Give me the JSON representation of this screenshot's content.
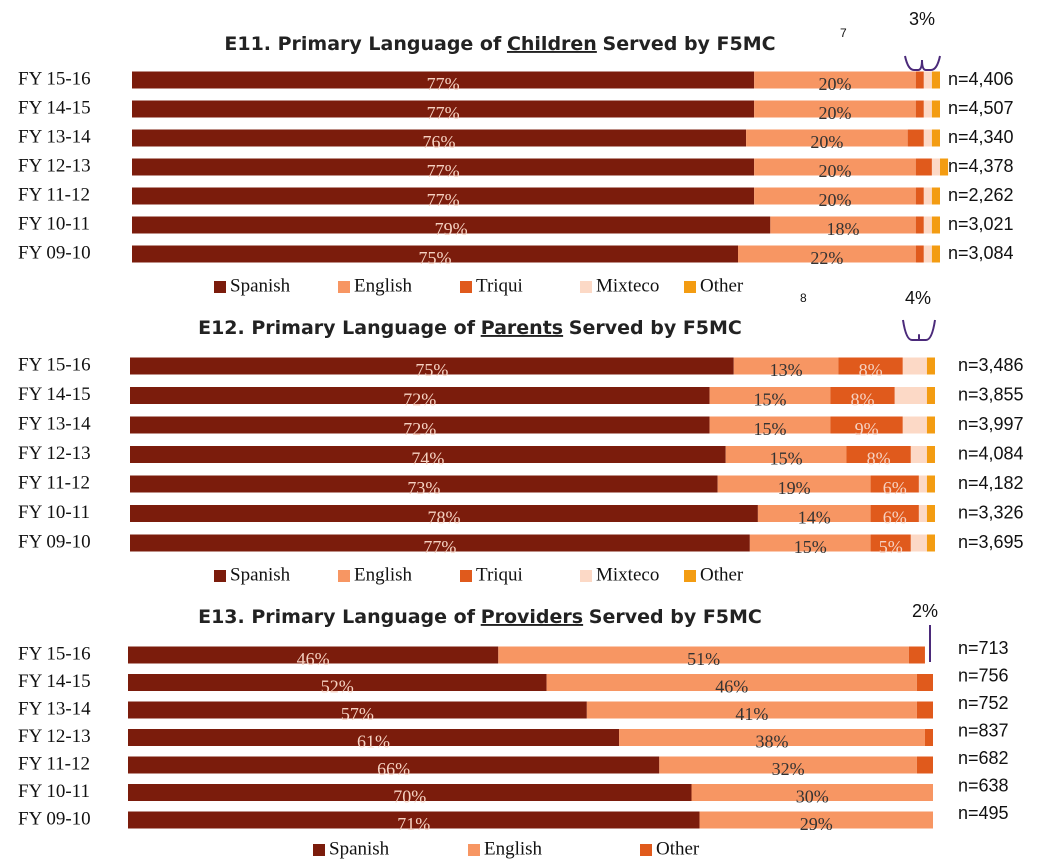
{
  "chart_data": [
    {
      "type": "bar",
      "stacked": true,
      "orientation": "horizontal",
      "title": [
        "E11. Primary Language of",
        "Children",
        "Served by F5MC"
      ],
      "title_note": "7",
      "annotation": "3%",
      "xlim": [
        0,
        100
      ],
      "categories": [
        "FY 15-16",
        "FY 14-15",
        "FY 13-14",
        "FY 12-13",
        "FY 11-12",
        "FY 10-11",
        "FY 09-10"
      ],
      "n_labels": [
        "n=4,406",
        "n=4,507",
        "n=4,340",
        "n=4,378",
        "n=2,262",
        "n=3,021",
        "n=3,084"
      ],
      "series": [
        {
          "name": "Spanish",
          "color": "#7b1c0c",
          "values": [
            77,
            77,
            76,
            77,
            77,
            79,
            75
          ],
          "value_labels": [
            "77%",
            "77%",
            "76%",
            "77%",
            "77%",
            "79%",
            "75%"
          ]
        },
        {
          "name": "English",
          "color": "#f79663",
          "values": [
            20,
            20,
            20,
            20,
            20,
            18,
            22
          ],
          "value_labels": [
            "20%",
            "20%",
            "20%",
            "20%",
            "20%",
            "18%",
            "22%"
          ]
        },
        {
          "name": "Triqui",
          "color": "#e05a1c",
          "values": [
            1,
            1,
            2,
            2,
            1,
            1,
            1
          ]
        },
        {
          "name": "Mixteco",
          "color": "#fcd9c6",
          "values": [
            1,
            1,
            1,
            1,
            1,
            1,
            1
          ]
        },
        {
          "name": "Other",
          "color": "#f39c12",
          "values": [
            1,
            1,
            1,
            1,
            1,
            1,
            1
          ]
        }
      ]
    },
    {
      "type": "bar",
      "stacked": true,
      "orientation": "horizontal",
      "title": [
        "E12. Primary Language of",
        "Parents",
        "Served by F5MC"
      ],
      "title_note": "8",
      "annotation": "4%",
      "xlim": [
        0,
        100
      ],
      "categories": [
        "FY 15-16",
        "FY 14-15",
        "FY 13-14",
        "FY 12-13",
        "FY 11-12",
        "FY 10-11",
        "FY 09-10"
      ],
      "n_labels": [
        "n=3,486",
        "n=3,855",
        "n=3,997",
        "n=4,084",
        "n=4,182",
        "n=3,326",
        "n=3,695"
      ],
      "series": [
        {
          "name": "Spanish",
          "color": "#7b1c0c",
          "values": [
            75,
            72,
            72,
            74,
            73,
            78,
            77
          ],
          "value_labels": [
            "75%",
            "72%",
            "72%",
            "74%",
            "73%",
            "78%",
            "77%"
          ]
        },
        {
          "name": "English",
          "color": "#f79663",
          "values": [
            13,
            15,
            15,
            15,
            19,
            14,
            15
          ],
          "value_labels": [
            "13%",
            "15%",
            "15%",
            "15%",
            "19%",
            "14%",
            "15%"
          ]
        },
        {
          "name": "Triqui",
          "color": "#e05a1c",
          "values": [
            8,
            8,
            9,
            8,
            6,
            6,
            5
          ],
          "value_labels": [
            "8%",
            "8%",
            "9%",
            "8%",
            "6%",
            "6%",
            "5%"
          ]
        },
        {
          "name": "Mixteco",
          "color": "#fcd9c6",
          "values": [
            3,
            4,
            3,
            2,
            1,
            1,
            2
          ]
        },
        {
          "name": "Other",
          "color": "#f39c12",
          "values": [
            1,
            1,
            1,
            1,
            1,
            1,
            1
          ]
        }
      ]
    },
    {
      "type": "bar",
      "stacked": true,
      "orientation": "horizontal",
      "title": [
        "E13. Primary Language of",
        "Providers",
        "Served by F5MC"
      ],
      "annotation": "2%",
      "xlim": [
        0,
        100
      ],
      "categories": [
        "FY 15-16",
        "FY 14-15",
        "FY 13-14",
        "FY 12-13",
        "FY 11-12",
        "FY 10-11",
        "FY 09-10"
      ],
      "n_labels": [
        "n=713",
        "n=756",
        "n=752",
        "n=837",
        "n=682",
        "n=638",
        "n=495"
      ],
      "series": [
        {
          "name": "Spanish",
          "color": "#7b1c0c",
          "values": [
            46,
            52,
            57,
            61,
            66,
            70,
            71
          ],
          "value_labels": [
            "46%",
            "52%",
            "57%",
            "61%",
            "66%",
            "70%",
            "71%"
          ]
        },
        {
          "name": "English",
          "color": "#f79663",
          "values": [
            51,
            46,
            41,
            38,
            32,
            30,
            29
          ],
          "value_labels": [
            "51%",
            "46%",
            "41%",
            "38%",
            "32%",
            "30%",
            "29%"
          ]
        },
        {
          "name": "Other",
          "color": "#e05a1c",
          "values": [
            2,
            2,
            2,
            1,
            2,
            0,
            0
          ]
        }
      ]
    }
  ]
}
